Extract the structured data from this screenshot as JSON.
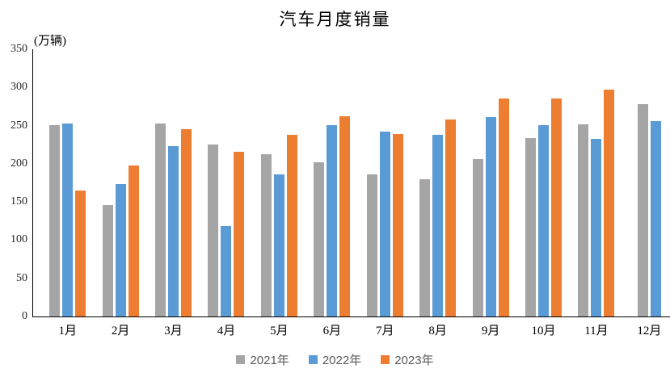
{
  "chart_data": {
    "type": "bar",
    "title": "汽车月度销量",
    "unit_label": "(万辆)",
    "xlabel": "",
    "ylabel": "万辆",
    "categories": [
      "1月",
      "2月",
      "3月",
      "4月",
      "5月",
      "6月",
      "7月",
      "8月",
      "9月",
      "10月",
      "11月",
      "12月"
    ],
    "series": [
      {
        "name": "2021年",
        "color": "#A5A5A5",
        "values": [
          250.3,
          145.5,
          252.6,
          225.2,
          212.8,
          201.5,
          186.4,
          179.9,
          206.7,
          233.3,
          252.2,
          278.6
        ]
      },
      {
        "name": "2022年",
        "color": "#5B9BD5",
        "values": [
          253.1,
          173.7,
          223.4,
          118.1,
          186.2,
          250.2,
          242.0,
          238.3,
          261.0,
          250.5,
          232.8,
          255.6
        ]
      },
      {
        "name": "2023年",
        "color": "#ED7D31",
        "values": [
          164.9,
          197.6,
          245.1,
          215.9,
          238.2,
          262.2,
          238.7,
          258.2,
          285.8,
          285.3,
          297.0,
          null
        ]
      }
    ],
    "ylim": [
      0,
      350
    ],
    "yticks": [
      0,
      50,
      100,
      150,
      200,
      250,
      300,
      350
    ],
    "grid": false,
    "legend_position": "bottom",
    "axis_color": "#000000",
    "legend_text_color": "#595959"
  }
}
